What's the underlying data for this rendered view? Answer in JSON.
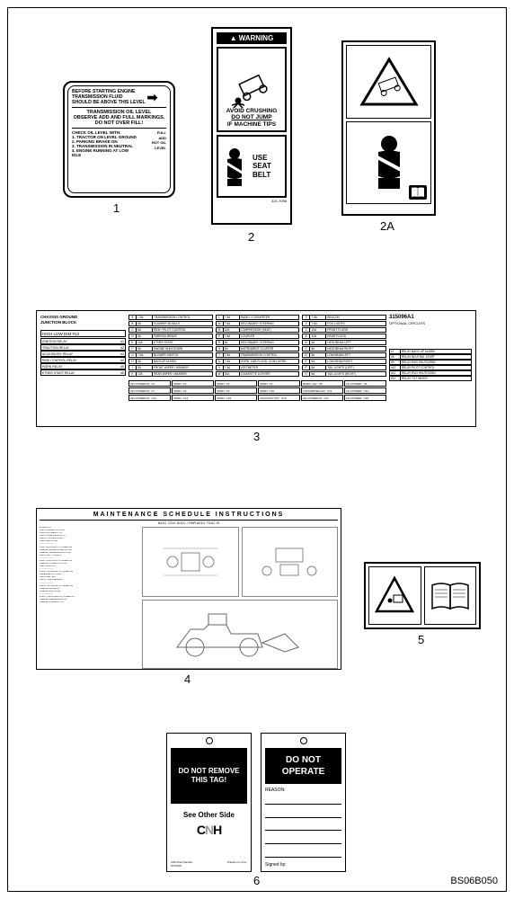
{
  "labels": {
    "n1": "1",
    "n2": "2",
    "n2a": "2A",
    "n3": "3",
    "n4": "4",
    "n5": "5",
    "n6": "6"
  },
  "footer": "BS06B050",
  "decal1": {
    "line1": "BEFORE STARTING ENGINE",
    "line2": "TRANSMISSION FLUID",
    "line3": "SHOULD BE ABOVE THIS LEVEL",
    "sec2a": "TRANSMISSION OIL LEVEL",
    "sec2b": "OBSERVE ADD AND FULL MARKINGS.",
    "sec2c": "DO NOT OVER FILL!",
    "sec3h": "CHECK OIL LEVEL WITH:",
    "sec3_1": "1. TRACTOR ON LEVEL GROUND",
    "sec3_2": "2. PARKING BRAKE ON",
    "sec3_3": "3. TRANSMISSION IN NEUTRAL",
    "sec3_4": "4. ENGINE RUNNING AT LOW IDLE",
    "mark_full": "FULL",
    "mark_add": "ADD",
    "mark_hot": "HOT OIL LEVEL"
  },
  "decal2": {
    "warning": "WARNING",
    "txt1": "AVOID CRUSHING",
    "txt2": "DO NOT JUMP",
    "txt3": "IF MACHINE TIPS",
    "belt1": "USE",
    "belt2": "SEAT",
    "belt3": "BELT",
    "partno": "321-7098"
  },
  "decal3": {
    "chassis": "CHASSIS GROUND",
    "junction": "JUNCTION BLOCK",
    "hilodim": "HIGH LOW DIM #13",
    "relays": [
      [
        "IGNITION RELAY",
        "#1"
      ],
      [
        "TRACTION RELAY",
        "#2"
      ],
      [
        "ACCESSORY RELAY",
        "#3"
      ],
      [
        "RIDE CONTROL RELAY",
        "#4"
      ],
      [
        "HORN RELAY",
        "#5"
      ],
      [
        "ETHER START RELAY",
        "#6"
      ]
    ],
    "fuses": [
      [
        "A",
        "7.5A",
        "TRANSMISSION CONTROL"
      ],
      [
        "L",
        "7.5A",
        "RADIO / CONVERTER"
      ],
      [
        "X",
        "7.5A",
        "BEACON"
      ],
      [
        "B",
        "5A",
        "FLASHER MODULE"
      ],
      [
        "M",
        "7.5A",
        "SECONDARY STEERING"
      ],
      [
        "Y",
        "7.5A",
        "FOG LIGHTS"
      ],
      [
        "C",
        "5A",
        "RIDE / PILOT CONTROL"
      ],
      [
        "N",
        "10A",
        "COMPRESSOR (SEAT)"
      ],
      [
        "Z",
        "10A",
        "FRONT FLOOD"
      ],
      [
        "D",
        "5A",
        "PARKING BRAKE"
      ],
      [
        "P",
        "7.5A",
        "COUPLER"
      ],
      [
        "A'",
        "10A",
        "REAR FLOOD"
      ],
      [
        "E",
        "10A",
        "ETHER START"
      ],
      [
        "R",
        "5A",
        "SECONDARY STEERING"
      ],
      [
        "B'",
        "5A",
        "HIGH BEAM LEFT"
      ],
      [
        "F",
        "5A",
        "ENGINE SHUTDOWN"
      ],
      [
        "S",
        "5A",
        "INSTRUMENT CLUSTER"
      ],
      [
        "C'",
        "5A",
        "HIGH BEAM RIGHT"
      ],
      [
        "G",
        "7.5A",
        "BLOWER SWITCH"
      ],
      [
        "T",
        "7.5A",
        "TRANSMISSION CONTROL"
      ],
      [
        "D'",
        "5A",
        "LOW BEAM LEFT"
      ],
      [
        "H",
        "5A",
        "BACKUP ALARM"
      ],
      [
        "U",
        "7.5A",
        "HORN, CAB FLOOD, CONV HORN"
      ],
      [
        "E'",
        "5A",
        "LOW BEAM RIGHT"
      ],
      [
        "J",
        "5A",
        "FRONT WIPER / WASHER"
      ],
      [
        "V",
        "7.5A",
        "VOLTMETER"
      ],
      [
        "F'",
        "5A",
        "TAIL LIGHTS (LEFT)"
      ],
      [
        "K",
        "10A",
        "REAR WIPER / WASHER"
      ],
      [
        "W",
        "15A",
        "CIGARETTE LIGHTER"
      ],
      [
        "G'",
        "5A",
        "TAIL LIGHTS (RIGHT)"
      ]
    ],
    "breakers": [
      [
        "24V POWER IN",
        "C1"
      ],
      [
        "OPEN",
        "C2"
      ],
      [
        "OPEN",
        "C3"
      ],
      [
        "OPEN",
        "C4"
      ],
      [
        "RADIO 12V",
        "C5"
      ],
      [
        "12V POWER",
        "C6"
      ],
      [
        "24V POWER IN",
        "C7"
      ],
      [
        "OPEN",
        "C8"
      ],
      [
        "OPEN",
        "C9"
      ],
      [
        "OPEN",
        "C10"
      ],
      [
        "CONVERTER 12V",
        "C11"
      ],
      [
        "12V POWER",
        "C12"
      ],
      [
        "24V POWER IN",
        "C13"
      ],
      [
        "OPEN",
        "C14"
      ],
      [
        "OPEN",
        "C15"
      ],
      [
        "CIG/CONV OUT",
        "C16"
      ],
      [
        "24V POWER IN",
        "C17"
      ],
      [
        "12V POWER",
        "C18"
      ]
    ],
    "partno": "315096A1",
    "optional": "OPTIONAL CIRCUITS",
    "opts": [
      [
        "#7",
        "RELAY BACK UP ALARM"
      ],
      [
        "#8",
        "RELAY NEUTRAL START"
      ],
      [
        "#9",
        "RELAY ENG SHUTDOWN"
      ],
      [
        "#10",
        "RELAY PILOT CONTROL"
      ],
      [
        "#11",
        "RELAY ENG SHUTDOWN"
      ],
      [
        "#12",
        "RELAY TILT WHEEL"
      ]
    ]
  },
  "decal4": {
    "title": "MAINTENANCE SCHEDULE INSTRUCTIONS",
    "sub": "621C  721C  821C  / PAR                    621C  721C  VI",
    "lines": [
      "AT EACH OIL",
      "CHECK ENGINE OIL LEVEL",
      "CHECK HYDRAULIC OIL",
      "CHECK TRANSMISSION OIL",
      "CHECK COOLANT LEVEL",
      "CHECK AIR FILTER",
      "———————",
      "FIRST 100 HOURS OF OPERATION",
      "CHANGE ENGINE OIL AND FILTER",
      "CHANGE TRANSMISSION FILTER",
      "CHECK BELT TENSION",
      "———————",
      "FIRST 250 HOURS OF OPERATION",
      "CHANGE HYDRAULIC FILTER",
      "CHECK AXLE OIL",
      "———————",
      "EVERY 250 HOURS OF OPERATION",
      "GREASE ALL FITTINGS",
      "CHECK BATTERY",
      "CHECK TIRE PRESSURE",
      "———————",
      "EVERY 500 HOURS OF OPERATION",
      "CHANGE ENGINE OIL",
      "CHANGE FUEL FILTER",
      "———————",
      "EVERY 1000 HOURS OF OPERATION",
      "CHANGE TRANSMISSION OIL",
      "CHANGE HYDRAULIC OIL"
    ]
  },
  "decal6": {
    "t1a": "DO NOT REMOVE",
    "t1b": "THIS TAG!",
    "t1see": "See Other Side",
    "t1logo": "CNH",
    "t1foot1": "CNH Part Number",
    "t1foot2": "STOCK#",
    "t1foot3": "Printed in U.S.A.",
    "t2a": "DO NOT",
    "t2b": "OPERATE",
    "t2reason": "REASON:",
    "t2signed": "Signed by:"
  }
}
